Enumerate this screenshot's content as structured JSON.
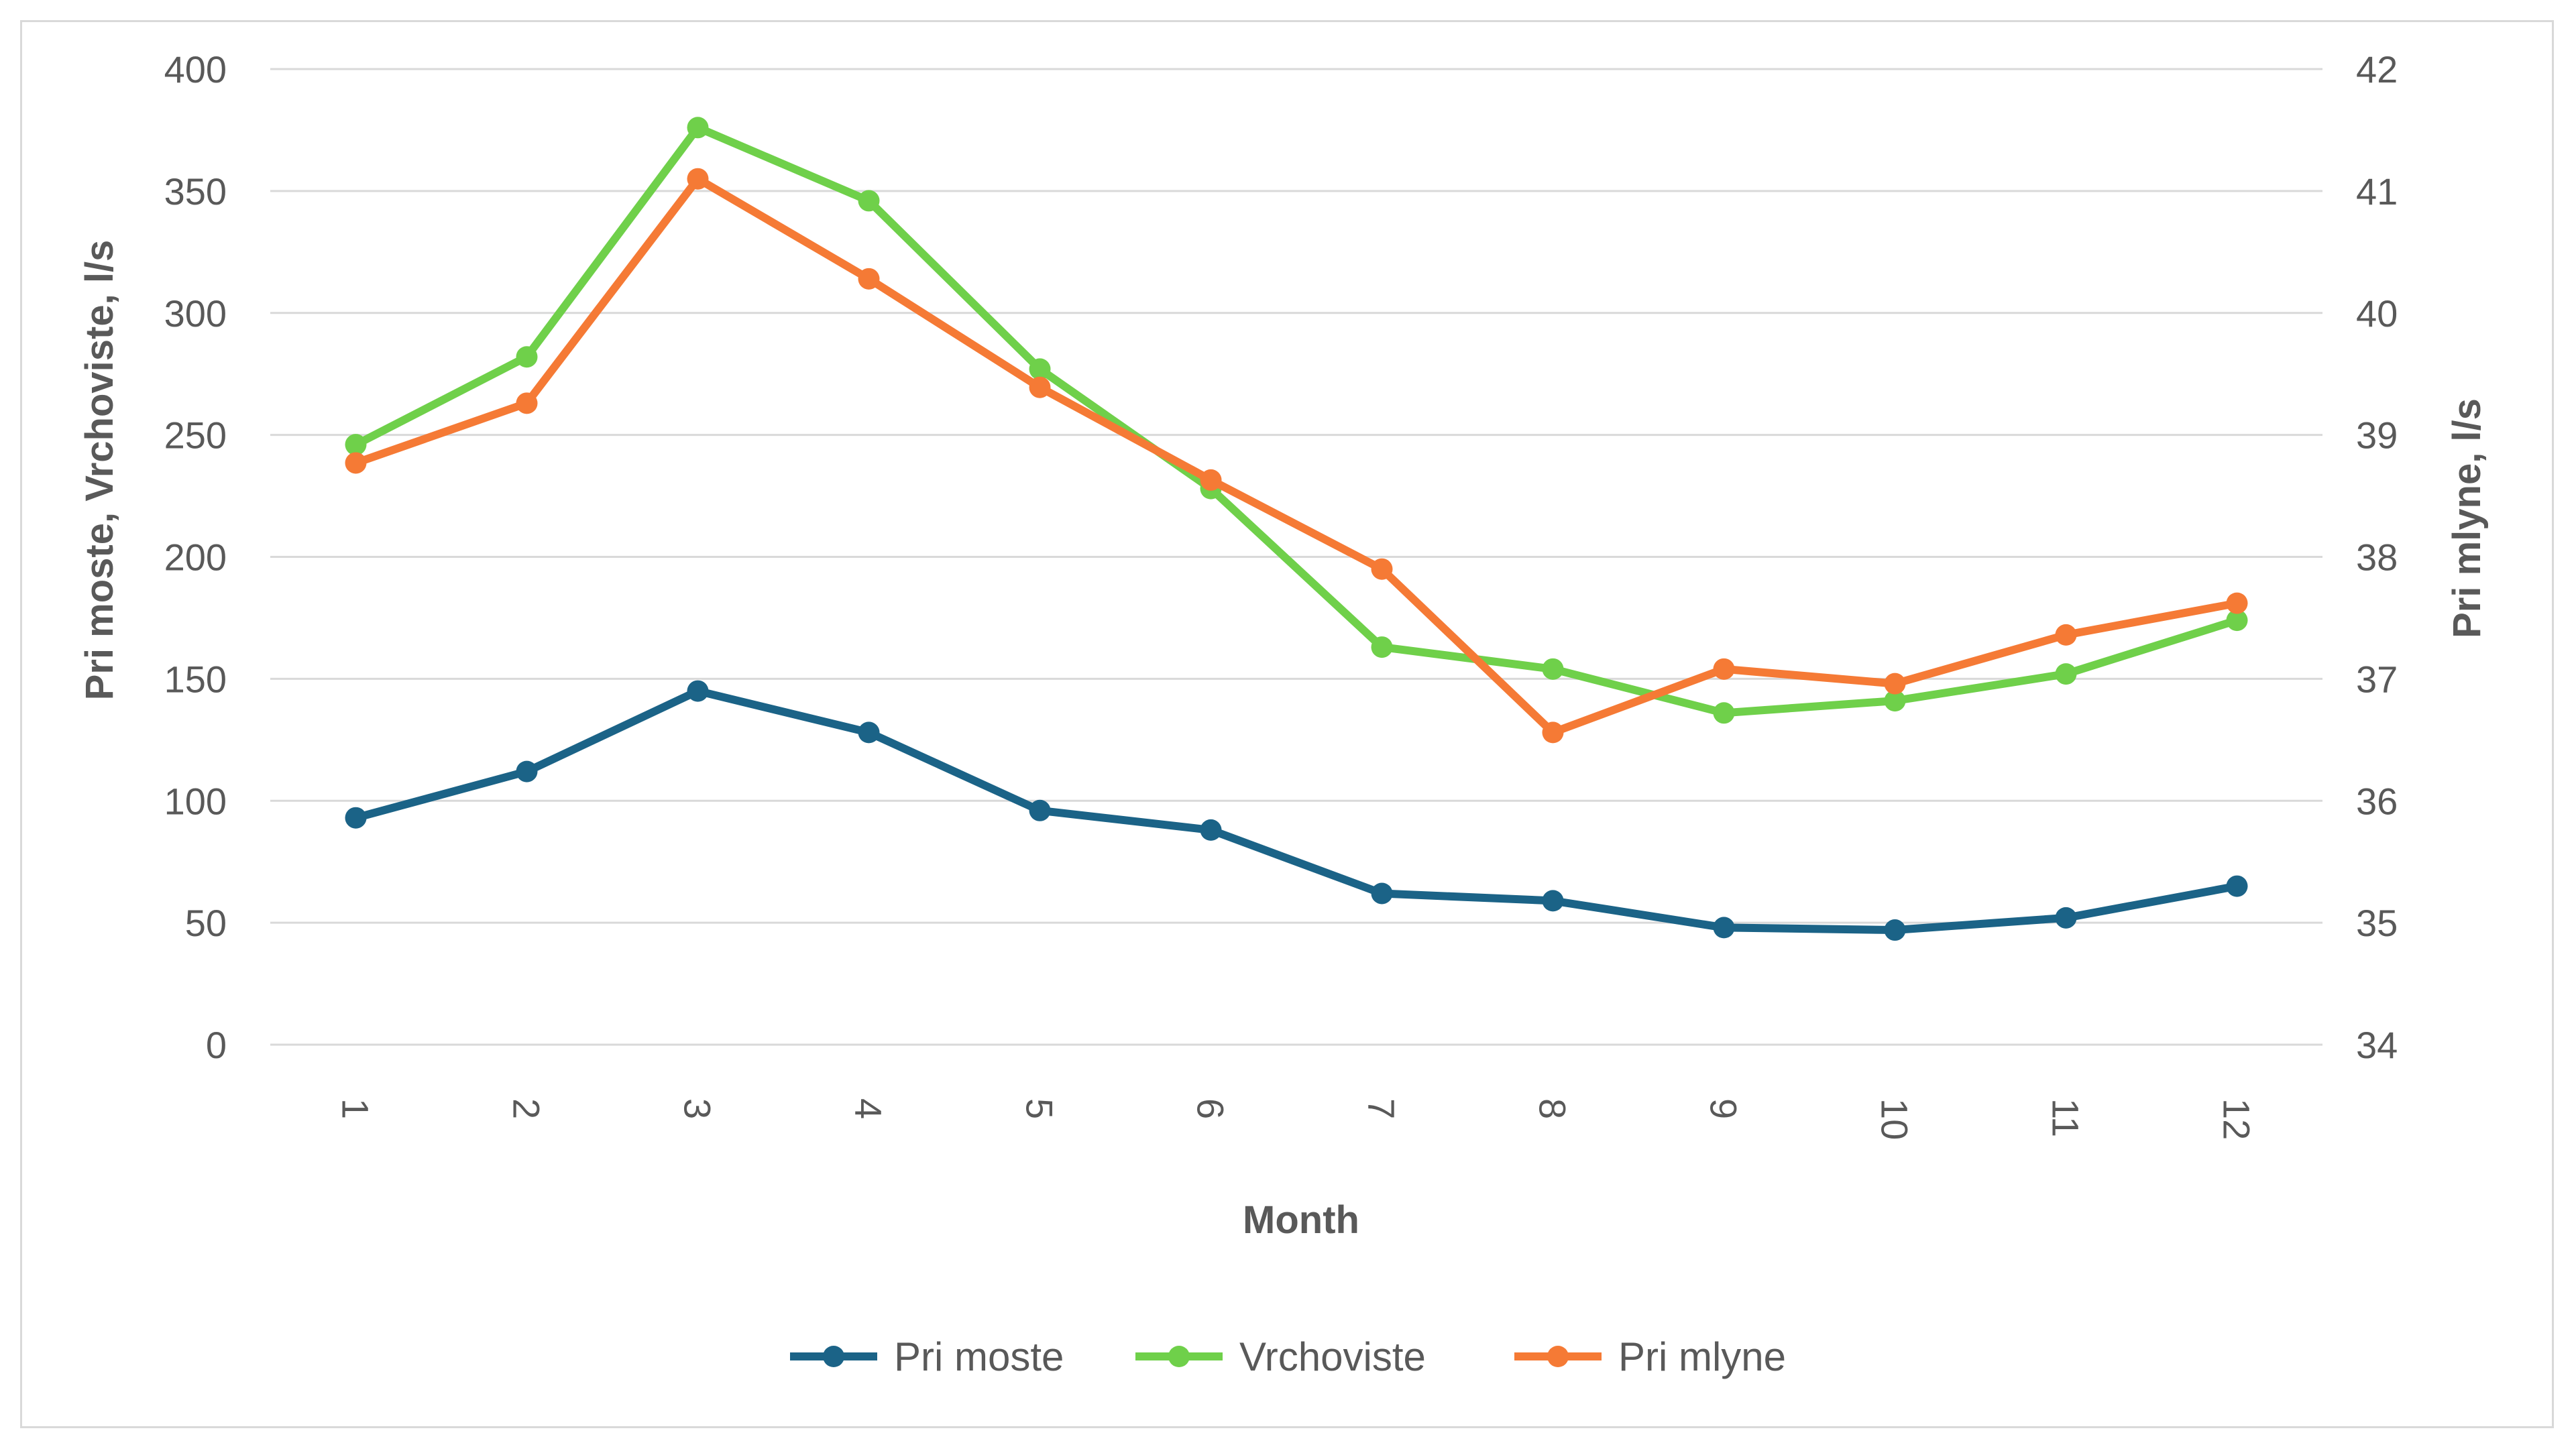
{
  "chart_data": {
    "type": "line",
    "title": "",
    "xlabel": "Month",
    "ylabel_left": "Pri moste, Vrchoviste, l/s",
    "ylabel_right": "Pri mlyne, l/s",
    "categories": [
      "1",
      "2",
      "3",
      "4",
      "5",
      "6",
      "7",
      "8",
      "9",
      "10",
      "11",
      "12"
    ],
    "ylim_left": [
      0,
      400
    ],
    "yticks_left": [
      "0",
      "50",
      "100",
      "150",
      "200",
      "250",
      "300",
      "350",
      "400"
    ],
    "ylim_right": [
      34,
      42
    ],
    "yticks_right": [
      "34",
      "35",
      "36",
      "37",
      "38",
      "39",
      "40",
      "41",
      "42"
    ],
    "grid": true,
    "legend_position": "bottom",
    "series": [
      {
        "name": "Pri moste",
        "axis": "left",
        "color": "#1b6387",
        "values": [
          93,
          112,
          145,
          128,
          96,
          88,
          62,
          59,
          48,
          47,
          52,
          65
        ]
      },
      {
        "name": "Vrchoviste",
        "axis": "left",
        "color": "#6fd04a",
        "values": [
          246,
          282,
          376,
          346,
          277,
          228,
          163,
          154,
          136,
          141,
          152,
          174
        ]
      },
      {
        "name": "Pri mlyne",
        "axis": "right",
        "color": "#f57a35",
        "values": [
          38.77,
          39.26,
          41.1,
          40.28,
          39.39,
          38.63,
          37.9,
          36.56,
          37.08,
          36.96,
          37.36,
          37.62
        ]
      }
    ]
  }
}
